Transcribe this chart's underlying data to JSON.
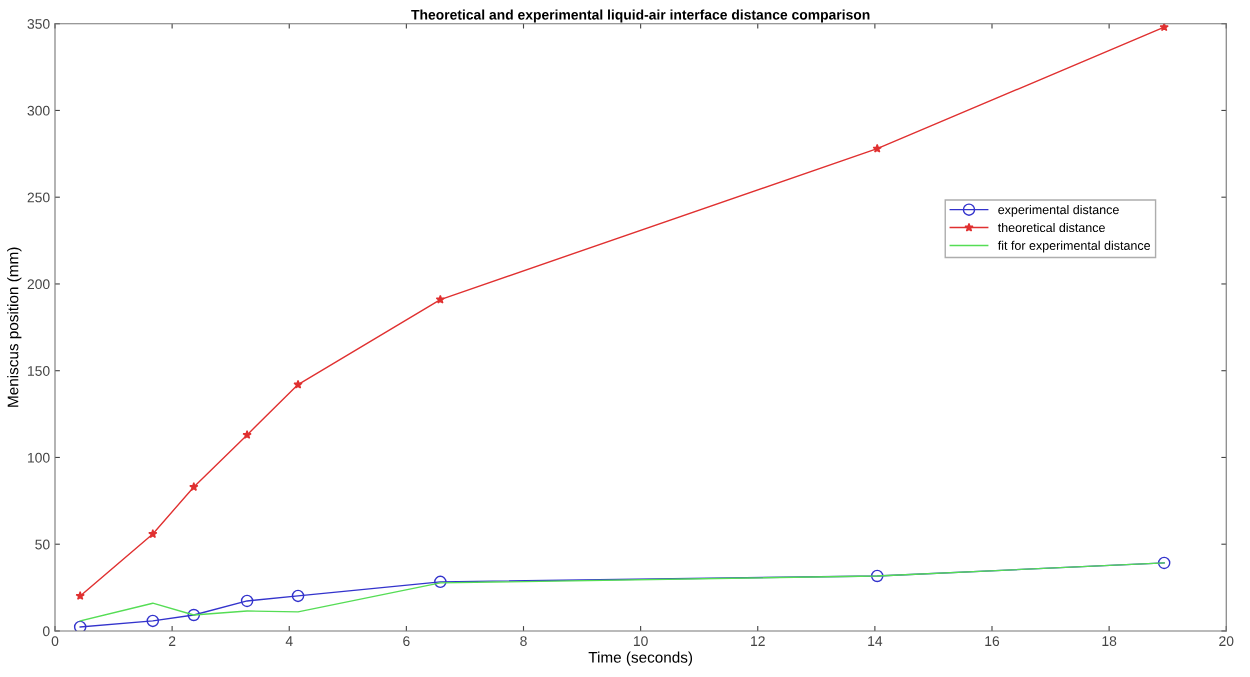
{
  "chart_data": {
    "type": "line",
    "title": "Theoretical and experimental liquid-air interface distance comparison",
    "xlabel": "Time (seconds)",
    "ylabel": "Meniscus position (mm)",
    "x": [
      0.43,
      1.67,
      2.37,
      3.28,
      4.15,
      6.58,
      14.04,
      18.94
    ],
    "series": [
      {
        "name": "experimental distance",
        "color": "#3333cc",
        "marker": "circle",
        "values": [
          2.3,
          5.8,
          9.2,
          17.3,
          20.2,
          28.3,
          31.7,
          39.2
        ]
      },
      {
        "name": "theoretical distance",
        "color": "#e03030",
        "marker": "star",
        "values": [
          20.2,
          55.9,
          83,
          113,
          142,
          191,
          278,
          348
        ]
      },
      {
        "name": "fit for experimental distance",
        "color": "#55dd55",
        "marker": "none",
        "values": [
          5.8,
          16,
          9.2,
          11.5,
          11,
          27.7,
          31.7,
          39.2
        ]
      }
    ],
    "xlim": [
      0,
      20
    ],
    "ylim": [
      0,
      350
    ],
    "xticks": [
      0,
      2,
      4,
      6,
      8,
      10,
      12,
      14,
      16,
      18,
      20
    ],
    "yticks": [
      0,
      50,
      100,
      150,
      200,
      250,
      300,
      350
    ],
    "grid": false,
    "legend": "top right",
    "line_style": "solid"
  }
}
